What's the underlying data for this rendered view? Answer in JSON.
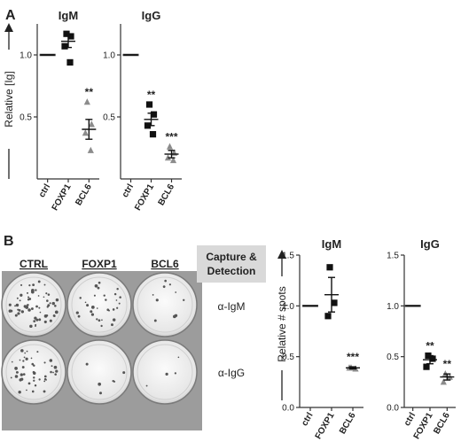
{
  "panels": {
    "a": {
      "letter": "A",
      "ylabel": "Relative [Ig]"
    },
    "b": {
      "letter": "B",
      "ylabel": "Relative # spots"
    }
  },
  "colors": {
    "ctrl": "#333333",
    "foxp1": "#111111",
    "bcl6": "#8c8c8c",
    "capture_box": "#d9d9d9"
  },
  "photo": {
    "columns": [
      "CTRL",
      "FOXP1",
      "BCL6"
    ],
    "capture_label": [
      "Capture &",
      "Detection"
    ],
    "row_labels": [
      "α-IgM",
      "α-IgG"
    ]
  },
  "chart_data": [
    {
      "id": "A-IgM",
      "type": "scatter",
      "title": "IgM",
      "ylabel": "Relative [Ig]",
      "categories": [
        "ctrl",
        "FOXP1",
        "BCL6"
      ],
      "ylim": [
        0,
        1.25
      ],
      "yticks": [
        0.5,
        1.0
      ],
      "points": [
        [
          1.0,
          1.0,
          1.0,
          1.0
        ],
        [
          1.17,
          1.15,
          1.07,
          0.94
        ],
        [
          0.62,
          0.44,
          0.37,
          0.23
        ]
      ],
      "means": [
        1.0,
        1.11,
        0.4
      ],
      "sem": [
        0,
        0.05,
        0.08
      ],
      "significance": [
        "",
        "",
        "**"
      ]
    },
    {
      "id": "A-IgG",
      "type": "scatter",
      "title": "IgG",
      "categories": [
        "ctrl",
        "FOXP1",
        "BCL6"
      ],
      "ylim": [
        0,
        1.25
      ],
      "yticks": [
        0.5,
        1.0
      ],
      "points": [
        [
          1.0,
          1.0,
          1.0,
          1.0
        ],
        [
          0.6,
          0.52,
          0.43,
          0.36
        ],
        [
          0.26,
          0.21,
          0.17,
          0.15
        ]
      ],
      "means": [
        1.0,
        0.48,
        0.2
      ],
      "sem": [
        0,
        0.05,
        0.03
      ],
      "significance": [
        "",
        "**",
        "***"
      ]
    },
    {
      "id": "B-IgM",
      "type": "scatter",
      "title": "IgM",
      "ylabel": "Relative # spots",
      "categories": [
        "ctrl",
        "FOXP1",
        "BCL6"
      ],
      "ylim": [
        0,
        1.5
      ],
      "yticks": [
        0.0,
        0.5,
        1.0,
        1.5
      ],
      "points": [
        [
          1.0,
          1.0,
          1.0
        ],
        [
          1.38,
          1.03,
          0.9
        ],
        [
          0.39,
          0.38,
          0.39
        ]
      ],
      "means": [
        1.0,
        1.11,
        0.39
      ],
      "sem": [
        0,
        0.17,
        0.01
      ],
      "significance": [
        "",
        "",
        "***"
      ]
    },
    {
      "id": "B-IgG",
      "type": "scatter",
      "title": "IgG",
      "categories": [
        "ctrl",
        "FOXP1",
        "BCL6"
      ],
      "ylim": [
        0,
        1.5
      ],
      "yticks": [
        0.0,
        0.5,
        1.0,
        1.5
      ],
      "points": [
        [
          1.0,
          1.0,
          1.0
        ],
        [
          0.51,
          0.48,
          0.4
        ],
        [
          0.33,
          0.3,
          0.25
        ]
      ],
      "means": [
        1.0,
        0.47,
        0.3
      ],
      "sem": [
        0,
        0.04,
        0.03
      ],
      "significance": [
        "",
        "**",
        "**"
      ]
    }
  ]
}
